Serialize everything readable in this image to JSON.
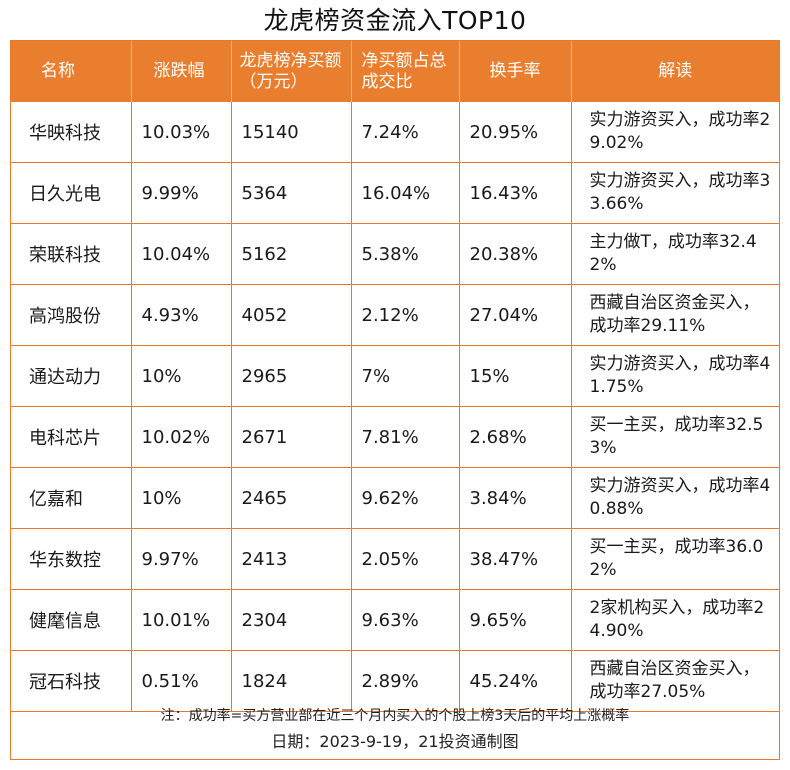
{
  "title": "龙虎榜资金流入TOP10",
  "colors": {
    "header_bg": "#ea7e2f",
    "border": "#e6792b",
    "header_text": "#ffffff"
  },
  "table": {
    "headers": {
      "name": "名称",
      "change": "涨跌幅",
      "net_buy": "龙虎榜净买额（万元）",
      "ratio": "净买额占总成交比",
      "turnover": "换手率",
      "interpretation": "解读"
    },
    "rows": [
      {
        "name": "华映科技",
        "change": "10.03%",
        "net_buy": "15140",
        "ratio": "7.24%",
        "turnover": "20.95%",
        "interpretation": "实力游资买入，成功率29.02%"
      },
      {
        "name": "日久光电",
        "change": "9.99%",
        "net_buy": "5364",
        "ratio": "16.04%",
        "turnover": "16.43%",
        "interpretation": "实力游资买入，成功率33.66%"
      },
      {
        "name": "荣联科技",
        "change": "10.04%",
        "net_buy": "5162",
        "ratio": "5.38%",
        "turnover": "20.38%",
        "interpretation": "主力做T，成功率32.42%"
      },
      {
        "name": "高鸿股份",
        "change": "4.93%",
        "net_buy": "4052",
        "ratio": "2.12%",
        "turnover": "27.04%",
        "interpretation": "西藏自治区资金买入，成功率29.11%"
      },
      {
        "name": "通达动力",
        "change": "10%",
        "net_buy": "2965",
        "ratio": "7%",
        "turnover": "15%",
        "interpretation": "实力游资买入，成功率41.75%"
      },
      {
        "name": "电科芯片",
        "change": "10.02%",
        "net_buy": "2671",
        "ratio": "7.81%",
        "turnover": "2.68%",
        "interpretation": "买一主买，成功率32.53%"
      },
      {
        "name": "亿嘉和",
        "change": "10%",
        "net_buy": "2465",
        "ratio": "9.62%",
        "turnover": "3.84%",
        "interpretation": "实力游资买入，成功率40.88%"
      },
      {
        "name": "华东数控",
        "change": "9.97%",
        "net_buy": "2413",
        "ratio": "2.05%",
        "turnover": "38.47%",
        "interpretation": "买一主买，成功率36.02%"
      },
      {
        "name": "健麾信息",
        "change": "10.01%",
        "net_buy": "2304",
        "ratio": "9.63%",
        "turnover": "9.65%",
        "interpretation": "2家机构买入，成功率24.90%"
      },
      {
        "name": "冠石科技",
        "change": "0.51%",
        "net_buy": "1824",
        "ratio": "2.89%",
        "turnover": "45.24%",
        "interpretation": "西藏自治区资金买入，成功率27.05%"
      }
    ]
  },
  "note": "注：成功率=买方营业部在近三个月内买入的个股上榜3天后的平均上涨概率",
  "date_line": "日期：2023-9-19，21投资通制图"
}
